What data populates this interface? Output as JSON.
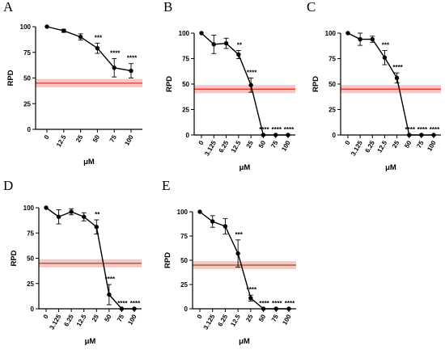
{
  "chart_data": [
    {
      "id": "A",
      "type": "line",
      "panel_label": "A",
      "xlabel": "μM",
      "ylabel": "RPD",
      "categories": [
        "0",
        "12.5",
        "25",
        "50",
        "75",
        "100"
      ],
      "values": [
        100,
        96,
        90,
        79,
        60,
        57
      ],
      "errors": [
        0,
        1.5,
        3,
        5,
        9,
        7
      ],
      "significance": [
        "",
        "",
        "",
        "***",
        "****",
        "****"
      ],
      "yticks": [
        0,
        25,
        50,
        75,
        100
      ],
      "ylim": [
        0,
        110
      ],
      "reference_line": {
        "value": 45,
        "band": [
          41,
          49
        ],
        "color": "#e8332a",
        "band_color": "#f4b7b7"
      }
    },
    {
      "id": "B",
      "type": "line",
      "panel_label": "B",
      "xlabel": "μM",
      "ylabel": "RPD",
      "categories": [
        "0",
        "3.125",
        "6.25",
        "12.5",
        "25",
        "50",
        "75",
        "100"
      ],
      "values": [
        100,
        89,
        90,
        79,
        49,
        0,
        0,
        0
      ],
      "errors": [
        0,
        9,
        5,
        4,
        7,
        0,
        0,
        0
      ],
      "significance": [
        "",
        "",
        "",
        "**",
        "****",
        "****",
        "****",
        "****"
      ],
      "yticks": [
        0,
        25,
        50,
        75,
        100
      ],
      "ylim": [
        0,
        110
      ],
      "reference_line": {
        "value": 45,
        "band": [
          41,
          49
        ],
        "color": "#e8332a",
        "band_color": "#f4b7b7"
      }
    },
    {
      "id": "C",
      "type": "line",
      "panel_label": "C",
      "xlabel": "μM",
      "ylabel": "RPD",
      "categories": [
        "0",
        "3.125",
        "6.25",
        "12.5",
        "25",
        "50",
        "75",
        "100"
      ],
      "values": [
        100,
        94,
        94,
        76,
        56,
        0,
        0,
        0
      ],
      "errors": [
        0,
        6,
        3,
        7,
        5,
        0,
        0,
        0
      ],
      "significance": [
        "",
        "",
        "",
        "***",
        "****",
        "****",
        "****",
        "****"
      ],
      "yticks": [
        0,
        25,
        50,
        75,
        100
      ],
      "ylim": [
        0,
        110
      ],
      "reference_line": {
        "value": 45,
        "band": [
          41,
          49
        ],
        "color": "#e8332a",
        "band_color": "#f4b7b7"
      }
    },
    {
      "id": "D",
      "type": "line",
      "panel_label": "D",
      "xlabel": "μM",
      "ylabel": "RPD",
      "categories": [
        "0",
        "3.125",
        "6.25",
        "12.5",
        "25",
        "50",
        "75",
        "100"
      ],
      "values": [
        100,
        91,
        96,
        91,
        81,
        14,
        0,
        0
      ],
      "errors": [
        0,
        7,
        3,
        4,
        7,
        10,
        0,
        0
      ],
      "significance": [
        "",
        "",
        "",
        "",
        "**",
        "****",
        "****",
        "****"
      ],
      "yticks": [
        0,
        25,
        50,
        75,
        100
      ],
      "ylim": [
        0,
        110
      ],
      "reference_line": {
        "value": 45,
        "band": [
          41,
          49
        ],
        "color": "#8a5a14",
        "band_color": "#f4b7b7"
      }
    },
    {
      "id": "E",
      "type": "line",
      "panel_label": "E",
      "xlabel": "μM",
      "ylabel": "RPD",
      "categories": [
        "0",
        "3.125",
        "6.25",
        "12.5",
        "25",
        "50",
        "75",
        "100"
      ],
      "values": [
        100,
        90,
        85,
        57,
        11,
        0,
        0,
        0
      ],
      "errors": [
        0,
        6,
        8,
        14,
        3,
        0,
        0,
        0
      ],
      "significance": [
        "",
        "",
        "",
        "***",
        "****",
        "****",
        "****",
        "****"
      ],
      "yticks": [
        0,
        25,
        50,
        75,
        100
      ],
      "ylim": [
        0,
        110
      ],
      "reference_line": {
        "value": 45,
        "band": [
          41,
          49
        ],
        "color": "#8a5a14",
        "band_color": "#f4b7b7"
      }
    }
  ]
}
